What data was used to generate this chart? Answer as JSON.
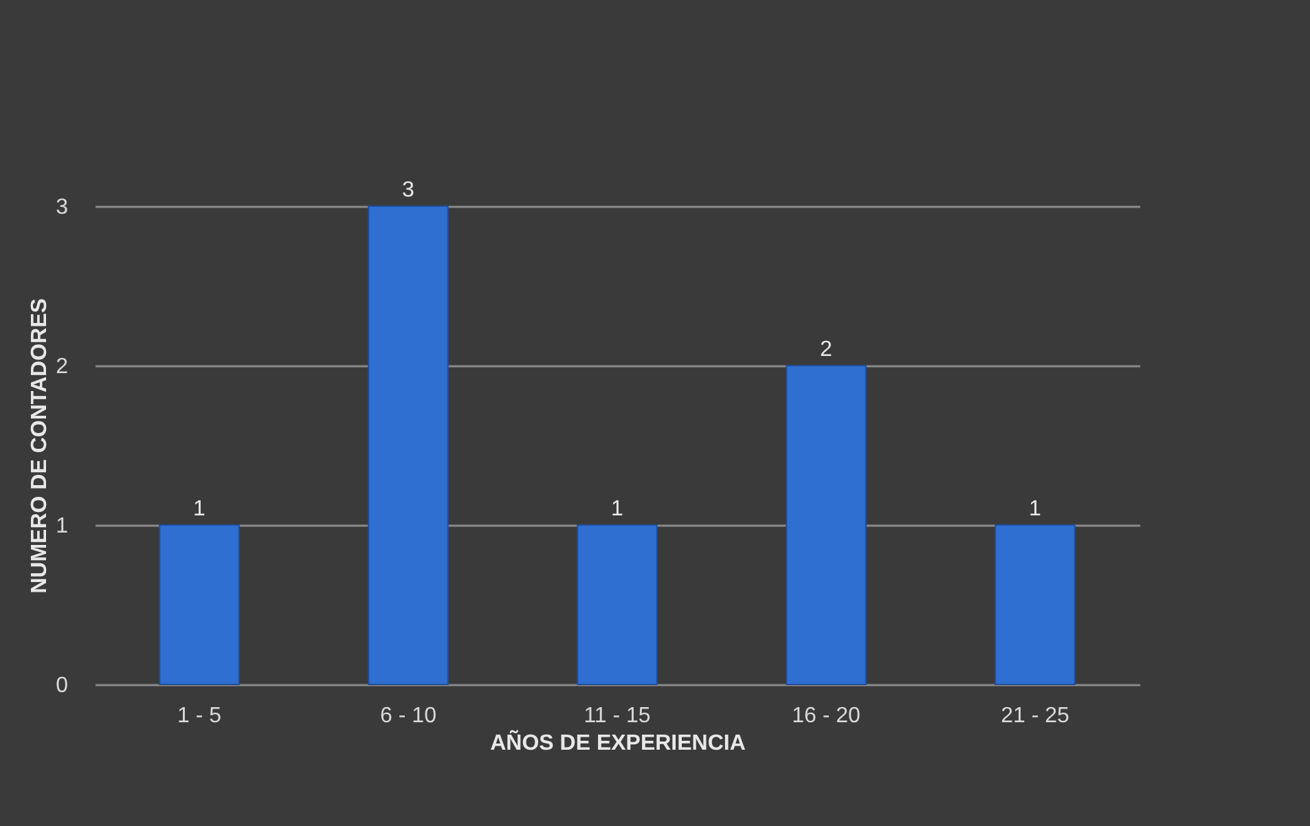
{
  "chart_data": {
    "type": "bar",
    "categories": [
      "1 - 5",
      "6 - 10",
      "11 - 15",
      "16 - 20",
      "21 - 25"
    ],
    "values": [
      1,
      3,
      1,
      2,
      1
    ],
    "color": "#2f6fd2",
    "xlabel": "AÑOS DE EXPERIENCIA",
    "ylabel": "NUMERO DE CONTADORES",
    "ylim": [
      0,
      3
    ],
    "yticks": [
      0,
      1,
      2,
      3
    ],
    "grid": "y",
    "data_labels": true
  }
}
